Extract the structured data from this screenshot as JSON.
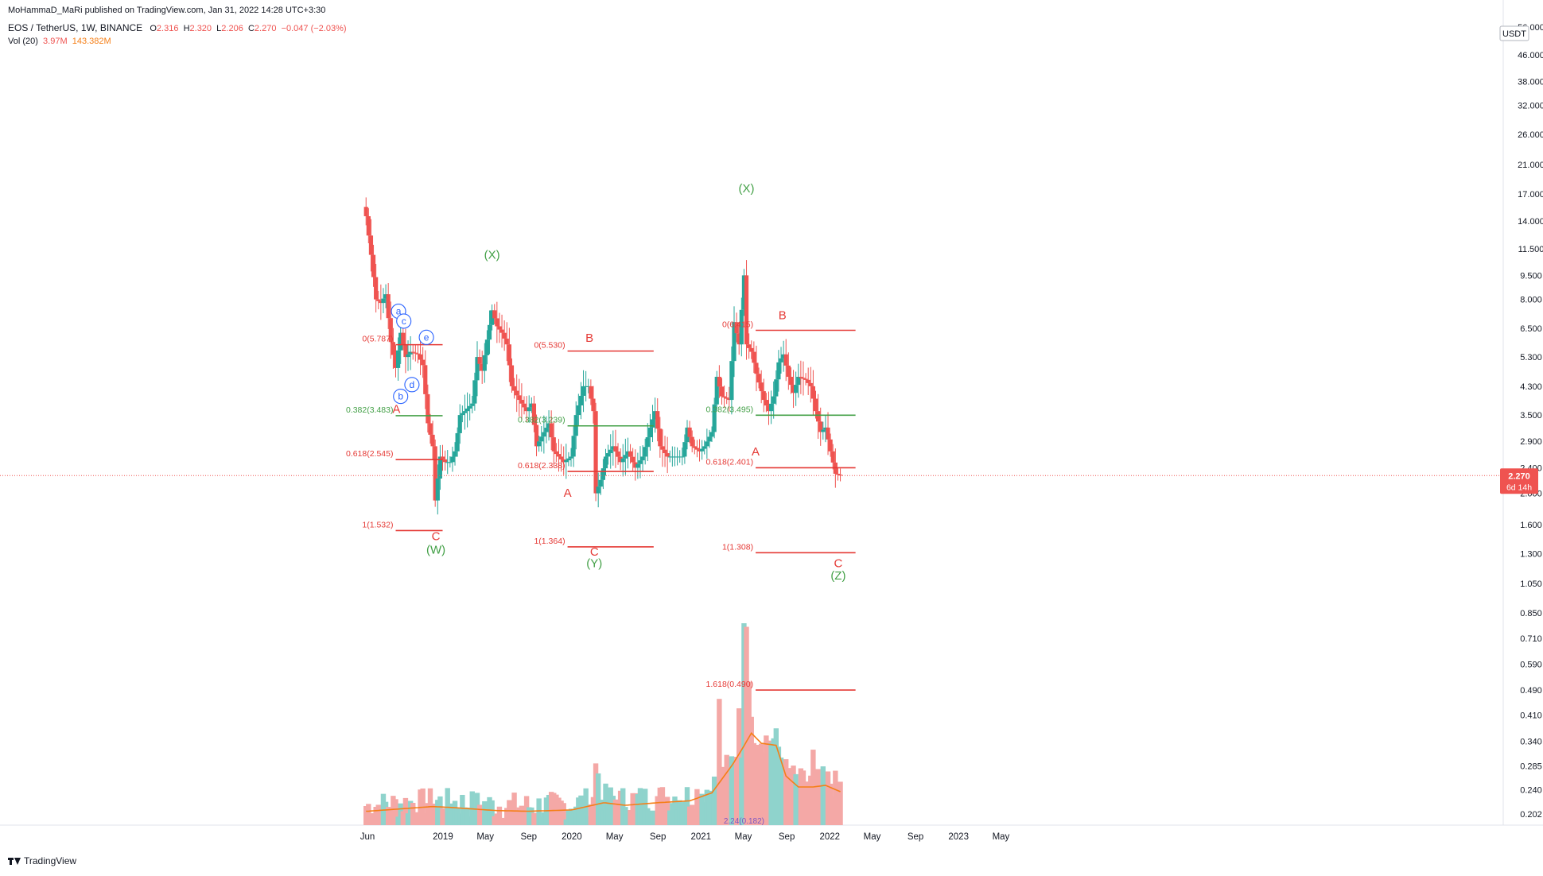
{
  "header": {
    "publisher": "MoHammaD_MaRi published on TradingView.com, Jan 31, 2022 14:28 UTC+3:30",
    "symbol": "EOS / TetherUS, 1W, BINANCE",
    "open_label": "O",
    "open": "2.316",
    "high_label": "H",
    "high": "2.320",
    "low_label": "L",
    "low": "2.206",
    "close_label": "C",
    "close": "2.270",
    "change": "−0.047 (−2.03%)",
    "vol_label": "Vol (20)",
    "vol_value": "3.97M",
    "vol_ma": "143.382M"
  },
  "footer": {
    "brand": "TradingView"
  },
  "colors": {
    "up": "#26a69a",
    "down": "#ef5350",
    "vol_up": "#8fd3cc",
    "vol_down": "#f4a8a6",
    "ma": "#f57f17",
    "fib_red": "#e53935",
    "fib_green": "#43a047",
    "label_green": "#43a047",
    "label_red": "#e53935",
    "circle": "#2962ff"
  },
  "chart_data": {
    "type": "candlestick",
    "scale": "log",
    "symbol": "EOS/USDT",
    "interval": "1W",
    "currency_label": "USDT",
    "last_price": "2.270",
    "countdown": "6d 14h",
    "y_ticks": [
      "56.000",
      "46.000",
      "38.000",
      "32.000",
      "26.000",
      "21.000",
      "17.000",
      "14.000",
      "11.500",
      "9.500",
      "8.000",
      "6.500",
      "5.300",
      "4.300",
      "3.500",
      "2.900",
      "2.400",
      "2.000",
      "1.600",
      "1.300",
      "1.050",
      "0.850",
      "0.710",
      "0.590",
      "0.490",
      "0.410",
      "0.340",
      "0.285",
      "0.240",
      "0.202"
    ],
    "x_ticks": [
      {
        "label": "Jun",
        "date": "2018-06-01"
      },
      {
        "label": "2019",
        "date": "2019-01-01"
      },
      {
        "label": "May",
        "date": "2019-05-01"
      },
      {
        "label": "Sep",
        "date": "2019-09-01"
      },
      {
        "label": "2020",
        "date": "2020-01-01"
      },
      {
        "label": "May",
        "date": "2020-05-01"
      },
      {
        "label": "Sep",
        "date": "2020-09-01"
      },
      {
        "label": "2021",
        "date": "2021-01-01"
      },
      {
        "label": "May",
        "date": "2021-05-01"
      },
      {
        "label": "Sep",
        "date": "2021-09-01"
      },
      {
        "label": "2022",
        "date": "2022-01-01"
      },
      {
        "label": "May",
        "date": "2022-05-01"
      },
      {
        "label": "Sep",
        "date": "2022-09-01"
      },
      {
        "label": "2023",
        "date": "2023-01-01"
      },
      {
        "label": "May",
        "date": "2023-05-01"
      }
    ],
    "price_anchors": [
      [
        "2018-05-28",
        14.5
      ],
      [
        "2018-06-11",
        11.0
      ],
      [
        "2018-06-25",
        8.0
      ],
      [
        "2018-07-09",
        7.8
      ],
      [
        "2018-07-23",
        8.3
      ],
      [
        "2018-08-06",
        5.9
      ],
      [
        "2018-08-20",
        4.9
      ],
      [
        "2018-09-03",
        6.3
      ],
      [
        "2018-09-17",
        5.3
      ],
      [
        "2018-10-01",
        5.5
      ],
      [
        "2018-10-22",
        5.4
      ],
      [
        "2018-11-05",
        5.0
      ],
      [
        "2018-11-19",
        3.3
      ],
      [
        "2018-12-03",
        2.8
      ],
      [
        "2018-12-10",
        1.9
      ],
      [
        "2018-12-24",
        2.6
      ],
      [
        "2019-01-07",
        2.5
      ],
      [
        "2019-01-21",
        2.5
      ],
      [
        "2019-02-04",
        2.7
      ],
      [
        "2019-02-18",
        3.5
      ],
      [
        "2019-03-04",
        3.6
      ],
      [
        "2019-03-25",
        3.8
      ],
      [
        "2019-04-08",
        5.3
      ],
      [
        "2019-04-22",
        4.8
      ],
      [
        "2019-05-06",
        6.0
      ],
      [
        "2019-05-20",
        7.4
      ],
      [
        "2019-06-03",
        6.6
      ],
      [
        "2019-06-17",
        6.3
      ],
      [
        "2019-07-01",
        5.8
      ],
      [
        "2019-07-15",
        4.3
      ],
      [
        "2019-08-05",
        3.9
      ],
      [
        "2019-08-26",
        3.6
      ],
      [
        "2019-09-09",
        3.8
      ],
      [
        "2019-09-23",
        2.8
      ],
      [
        "2019-10-07",
        3.0
      ],
      [
        "2019-10-28",
        3.3
      ],
      [
        "2019-11-11",
        2.7
      ],
      [
        "2019-11-25",
        2.6
      ],
      [
        "2019-12-09",
        2.5
      ],
      [
        "2019-12-30",
        2.6
      ],
      [
        "2020-01-13",
        3.5
      ],
      [
        "2020-02-03",
        4.3
      ],
      [
        "2020-02-17",
        4.3
      ],
      [
        "2020-03-02",
        3.6
      ],
      [
        "2020-03-09",
        2.0
      ],
      [
        "2020-03-23",
        2.2
      ],
      [
        "2020-04-06",
        2.6
      ],
      [
        "2020-04-27",
        2.8
      ],
      [
        "2020-05-18",
        2.5
      ],
      [
        "2020-06-08",
        2.7
      ],
      [
        "2020-06-29",
        2.4
      ],
      [
        "2020-07-20",
        2.6
      ],
      [
        "2020-08-10",
        3.2
      ],
      [
        "2020-08-24",
        3.6
      ],
      [
        "2020-09-07",
        2.8
      ],
      [
        "2020-09-28",
        2.6
      ],
      [
        "2020-10-19",
        2.6
      ],
      [
        "2020-11-09",
        2.6
      ],
      [
        "2020-11-23",
        3.2
      ],
      [
        "2020-12-07",
        2.8
      ],
      [
        "2020-12-28",
        2.7
      ],
      [
        "2021-01-11",
        2.8
      ],
      [
        "2021-02-01",
        3.1
      ],
      [
        "2021-02-15",
        4.6
      ],
      [
        "2021-03-01",
        4.0
      ],
      [
        "2021-03-22",
        3.9
      ],
      [
        "2021-04-05",
        6.8
      ],
      [
        "2021-04-19",
        5.8
      ],
      [
        "2021-05-03",
        9.5
      ],
      [
        "2021-05-10",
        5.8
      ],
      [
        "2021-05-24",
        5.5
      ],
      [
        "2021-06-07",
        4.7
      ],
      [
        "2021-06-28",
        3.9
      ],
      [
        "2021-07-12",
        3.6
      ],
      [
        "2021-07-26",
        4.0
      ],
      [
        "2021-08-09",
        5.1
      ],
      [
        "2021-08-23",
        5.4
      ],
      [
        "2021-09-06",
        4.6
      ],
      [
        "2021-09-20",
        4.1
      ],
      [
        "2021-10-04",
        4.6
      ],
      [
        "2021-10-25",
        4.5
      ],
      [
        "2021-11-08",
        4.3
      ],
      [
        "2021-11-22",
        3.6
      ],
      [
        "2021-12-06",
        3.1
      ],
      [
        "2021-12-20",
        3.2
      ],
      [
        "2022-01-03",
        2.7
      ],
      [
        "2022-01-17",
        2.3
      ],
      [
        "2022-01-31",
        2.27
      ]
    ],
    "volume_ma_anchors": [
      [
        "2018-06-01",
        0.206
      ],
      [
        "2018-12-01",
        0.213
      ],
      [
        "2019-01-15",
        0.212
      ],
      [
        "2019-06-01",
        0.207
      ],
      [
        "2019-09-01",
        0.206
      ],
      [
        "2020-01-01",
        0.208
      ],
      [
        "2020-04-01",
        0.219
      ],
      [
        "2020-06-01",
        0.215
      ],
      [
        "2020-09-01",
        0.219
      ],
      [
        "2020-12-01",
        0.222
      ],
      [
        "2021-02-01",
        0.235
      ],
      [
        "2021-04-01",
        0.288
      ],
      [
        "2021-05-01",
        0.326
      ],
      [
        "2021-05-24",
        0.36
      ],
      [
        "2021-06-21",
        0.335
      ],
      [
        "2021-08-02",
        0.33
      ],
      [
        "2021-08-30",
        0.265
      ],
      [
        "2021-10-04",
        0.245
      ],
      [
        "2021-11-15",
        0.245
      ],
      [
        "2021-12-20",
        0.248
      ],
      [
        "2022-01-31",
        0.237
      ]
    ],
    "volume_spikes": [
      [
        "2020-03-09",
        0.29
      ],
      [
        "2020-03-16",
        0.27
      ],
      [
        "2021-04-19",
        0.43
      ],
      [
        "2021-05-03",
        0.79
      ],
      [
        "2021-05-10",
        0.77
      ],
      [
        "2021-05-17",
        0.52
      ],
      [
        "2021-02-22",
        0.46
      ],
      [
        "2021-11-15",
        0.32
      ]
    ],
    "series_volume_note": "volume plotted on same log price axis",
    "fib_levels": [
      {
        "label": "0(5.787)",
        "value": 5.787,
        "color": "red",
        "x_from": "2018-08-20",
        "x_to": "2018-12-31"
      },
      {
        "label": "0.382(3.483)",
        "value": 3.483,
        "color": "green",
        "x_from": "2018-08-20",
        "x_to": "2018-12-31"
      },
      {
        "label": "0.618(2.545)",
        "value": 2.545,
        "color": "red",
        "x_from": "2018-08-20",
        "x_to": "2018-12-31"
      },
      {
        "label": "1(1.532)",
        "value": 1.532,
        "color": "red",
        "x_from": "2018-08-20",
        "x_to": "2018-12-31"
      },
      {
        "label": "0(5.530)",
        "value": 5.53,
        "color": "red",
        "x_from": "2019-12-20",
        "x_to": "2020-08-20"
      },
      {
        "label": "0.382(3.239)",
        "value": 3.239,
        "color": "green",
        "x_from": "2019-12-20",
        "x_to": "2020-08-20"
      },
      {
        "label": "0.618(2.338)",
        "value": 2.338,
        "color": "red",
        "x_from": "2019-12-20",
        "x_to": "2020-08-20"
      },
      {
        "label": "1(1.364)",
        "value": 1.364,
        "color": "red",
        "x_from": "2019-12-20",
        "x_to": "2020-08-20"
      },
      {
        "label": "0(6.415)",
        "value": 6.415,
        "color": "red",
        "x_from": "2021-06-05",
        "x_to": "2022-03-15"
      },
      {
        "label": "0.382(3.495)",
        "value": 3.495,
        "color": "green",
        "x_from": "2021-06-05",
        "x_to": "2022-03-15"
      },
      {
        "label": "0.618(2.401)",
        "value": 2.401,
        "color": "red",
        "x_from": "2021-06-05",
        "x_to": "2022-03-15"
      },
      {
        "label": "1(1.308)",
        "value": 1.308,
        "color": "red",
        "x_from": "2021-06-05",
        "x_to": "2022-03-15"
      },
      {
        "label": "1.618(0.490)",
        "value": 0.49,
        "color": "red",
        "x_from": "2021-06-05",
        "x_to": "2022-03-15"
      }
    ],
    "wave_labels": [
      {
        "text": "A",
        "date": "2018-08-22",
        "value": 3.55,
        "color": "red"
      },
      {
        "text": "B",
        "date": "2018-11-12",
        "value": 6.0,
        "color": "red"
      },
      {
        "text": "C",
        "date": "2018-12-12",
        "value": 1.43,
        "color": "red"
      },
      {
        "text": "(W)",
        "date": "2018-12-12",
        "value": 1.3,
        "color": "green"
      },
      {
        "text": "(X)",
        "date": "2019-05-20",
        "value": 10.7,
        "color": "green"
      },
      {
        "text": "A",
        "date": "2019-12-20",
        "value": 1.95,
        "color": "red"
      },
      {
        "text": "B",
        "date": "2020-02-20",
        "value": 5.9,
        "color": "red"
      },
      {
        "text": "C",
        "date": "2020-03-05",
        "value": 1.28,
        "color": "red"
      },
      {
        "text": "(Y)",
        "date": "2020-03-05",
        "value": 1.18,
        "color": "green"
      },
      {
        "text": "(X)",
        "date": "2021-05-10",
        "value": 17.2,
        "color": "green"
      },
      {
        "text": "A",
        "date": "2021-06-05",
        "value": 2.62,
        "color": "red"
      },
      {
        "text": "B",
        "date": "2021-08-20",
        "value": 6.95,
        "color": "red"
      },
      {
        "text": "C",
        "date": "2022-01-25",
        "value": 1.18,
        "color": "red"
      },
      {
        "text": "(Z)",
        "date": "2022-01-25",
        "value": 1.08,
        "color": "green"
      }
    ],
    "circle_labels": [
      {
        "text": "a",
        "date": "2018-08-28",
        "value": 7.35
      },
      {
        "text": "b",
        "date": "2018-09-03",
        "value": 4.0
      },
      {
        "text": "c",
        "date": "2018-09-12",
        "value": 6.85
      },
      {
        "text": "d",
        "date": "2018-10-05",
        "value": 4.35
      },
      {
        "text": "e",
        "date": "2018-11-15",
        "value": 6.1
      }
    ],
    "bottom_note": "2.24(0.182)",
    "grid": false
  }
}
